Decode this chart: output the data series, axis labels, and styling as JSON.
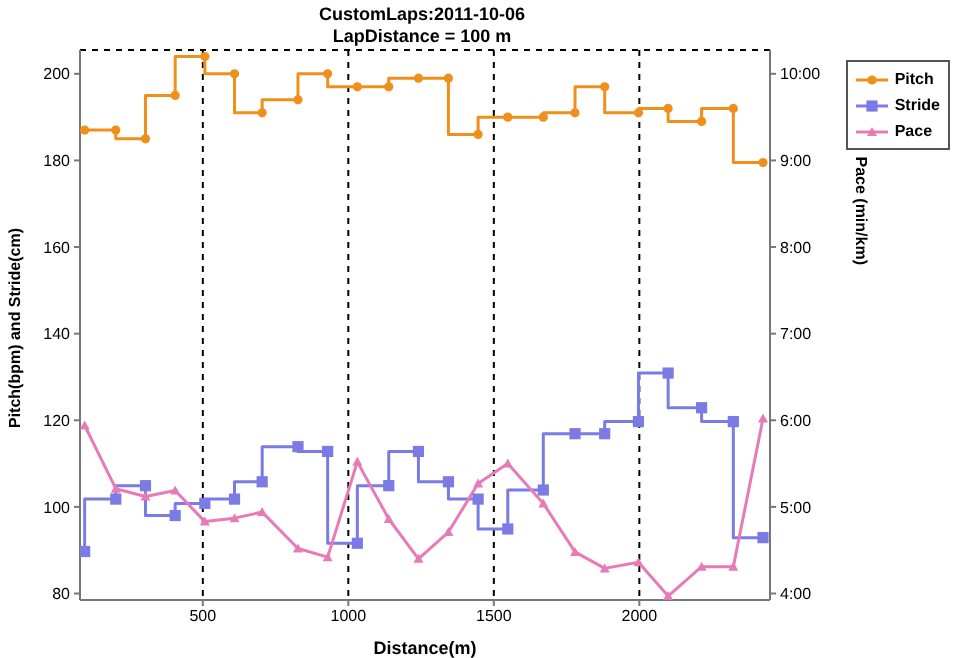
{
  "chart_data": {
    "type": "line",
    "title": "CustomLaps:2011-10-06",
    "subtitle": "LapDistance = 100 m",
    "xlabel": "Distance(m)",
    "ylabel": "Pitch(bpm) and Stride(cm)",
    "y2label": "Pace (min/km)",
    "x": [
      94,
      201,
      303,
      405,
      507,
      609,
      704,
      827,
      929,
      1031,
      1139,
      1241,
      1344,
      1446,
      1548,
      1670,
      1779,
      1881,
      1997,
      2099,
      2214,
      2323,
      2425
    ],
    "series": [
      {
        "name": "Pitch",
        "type": "step",
        "color": "#f0901c",
        "marker": "circle",
        "values": [
          187,
          187,
          185,
          195,
          204,
          200,
          191,
          194,
          200,
          197,
          197,
          199,
          199,
          186,
          190,
          190,
          191,
          197,
          191,
          192,
          189,
          192,
          179.5
        ]
      },
      {
        "name": "Stride",
        "type": "step",
        "color": "#7b7be6",
        "marker": "square",
        "values": [
          89.7,
          101.8,
          104.9,
          98,
          100.8,
          101.8,
          105.8,
          113.9,
          112.8,
          91.6,
          104.9,
          112.8,
          105.8,
          101.8,
          94.9,
          103.9,
          116.9,
          116.9,
          119.7,
          130.9,
          122.9,
          119.7,
          92.9
        ]
      },
      {
        "name": "Pace",
        "type": "line",
        "axis": "y2",
        "color": "#e87ab8",
        "marker": "triangle",
        "values": [
          5.94,
          5.21,
          5.12,
          5.19,
          4.83,
          4.87,
          4.94,
          4.52,
          4.42,
          5.52,
          4.86,
          4.4,
          4.71,
          5.27,
          5.5,
          5.04,
          4.48,
          4.29,
          4.36,
          3.97,
          4.31,
          4.31,
          6.02
        ]
      }
    ],
    "xlim": [
      78,
      2449
    ],
    "xticks": [
      500,
      1000,
      1500,
      2000
    ],
    "ylim": [
      78.5,
      205.5
    ],
    "yticks": [
      80,
      100,
      120,
      140,
      160,
      180,
      200
    ],
    "y2lim": [
      3.925,
      10.275
    ],
    "y2ticks": [
      {
        "value": 4,
        "label": "4:00"
      },
      {
        "value": 5,
        "label": "5:00"
      },
      {
        "value": 6,
        "label": "6:00"
      },
      {
        "value": 7,
        "label": "7:00"
      },
      {
        "value": 8,
        "label": "8:00"
      },
      {
        "value": 9,
        "label": "9:00"
      },
      {
        "value": 10,
        "label": "10:00"
      }
    ],
    "grid": true,
    "legend": "top right",
    "line_style": "solid"
  }
}
